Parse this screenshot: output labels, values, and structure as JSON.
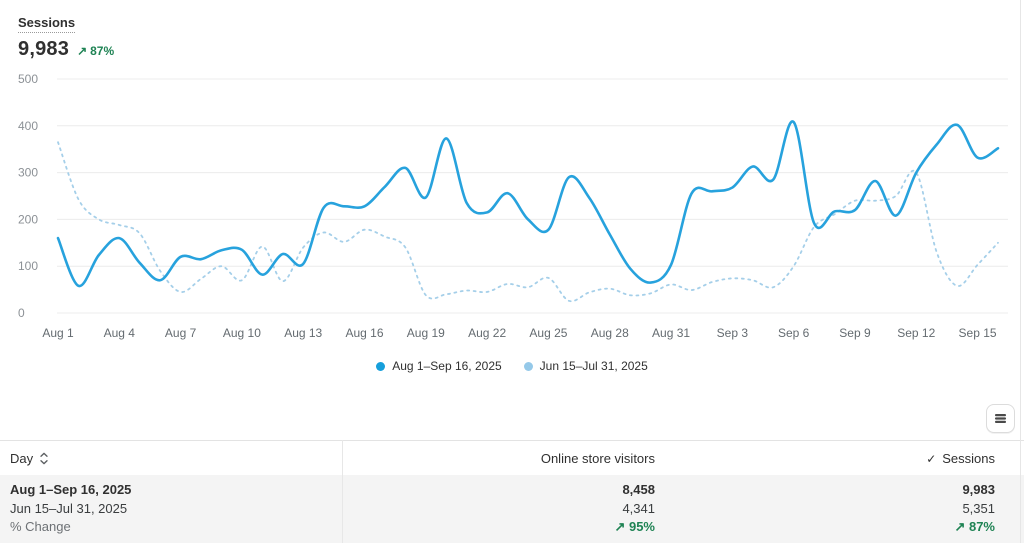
{
  "header": {
    "title": "Sessions",
    "value": "9,983",
    "change_arrow": "↗",
    "change_value": "87%"
  },
  "chart_data": {
    "type": "line",
    "title": "Sessions",
    "ylim": [
      0,
      500
    ],
    "y_ticks": [
      0,
      100,
      200,
      300,
      400,
      500
    ],
    "x_tick_labels": [
      "Aug 1",
      "Aug 4",
      "Aug 7",
      "Aug 10",
      "Aug 13",
      "Aug 16",
      "Aug 19",
      "Aug 22",
      "Aug 25",
      "Aug 28",
      "Aug 31",
      "Sep 3",
      "Sep 6",
      "Sep 9",
      "Sep 12",
      "Sep 15"
    ],
    "x_tick_every_days": 3,
    "grid": true,
    "legend_position": "bottom",
    "series": [
      {
        "name": "Aug 1–Sep 16, 2025",
        "style": "solid",
        "color": "#27a2dd",
        "legend_dot_color": "#169fdb",
        "values": [
          160,
          58,
          124,
          160,
          107,
          70,
          120,
          115,
          134,
          135,
          82,
          126,
          105,
          225,
          228,
          228,
          270,
          310,
          247,
          373,
          235,
          215,
          256,
          200,
          178,
          290,
          246,
          168,
          95,
          65,
          103,
          255,
          260,
          268,
          313,
          285,
          408,
          192,
          217,
          220,
          282,
          208,
          300,
          360,
          402,
          332,
          352
        ]
      },
      {
        "name": "Jun 15–Jul 31, 2025",
        "style": "dotted",
        "color": "#a5cfe9",
        "legend_dot_color": "#95c9e9",
        "values": [
          365,
          243,
          200,
          188,
          170,
          90,
          45,
          73,
          100,
          70,
          142,
          68,
          140,
          172,
          152,
          178,
          163,
          140,
          38,
          40,
          48,
          45,
          62,
          55,
          75,
          26,
          44,
          52,
          38,
          42,
          61,
          49,
          66,
          74,
          70,
          55,
          100,
          184,
          211,
          240,
          240,
          250,
          300,
          130,
          58,
          103,
          150
        ]
      }
    ]
  },
  "table": {
    "columns": {
      "day": "Day",
      "visitors": "Online store visitors",
      "sessions": "Sessions",
      "sessions_check": "✓"
    },
    "rows": [
      {
        "day": "Aug 1–Sep 16, 2025",
        "visitors": "8,458",
        "sessions": "9,983"
      },
      {
        "day": "Jun 15–Jul 31, 2025",
        "visitors": "4,341",
        "sessions": "5,351"
      },
      {
        "day": "% Change",
        "visitors": "↗ 95%",
        "sessions": "↗ 87%"
      }
    ]
  }
}
